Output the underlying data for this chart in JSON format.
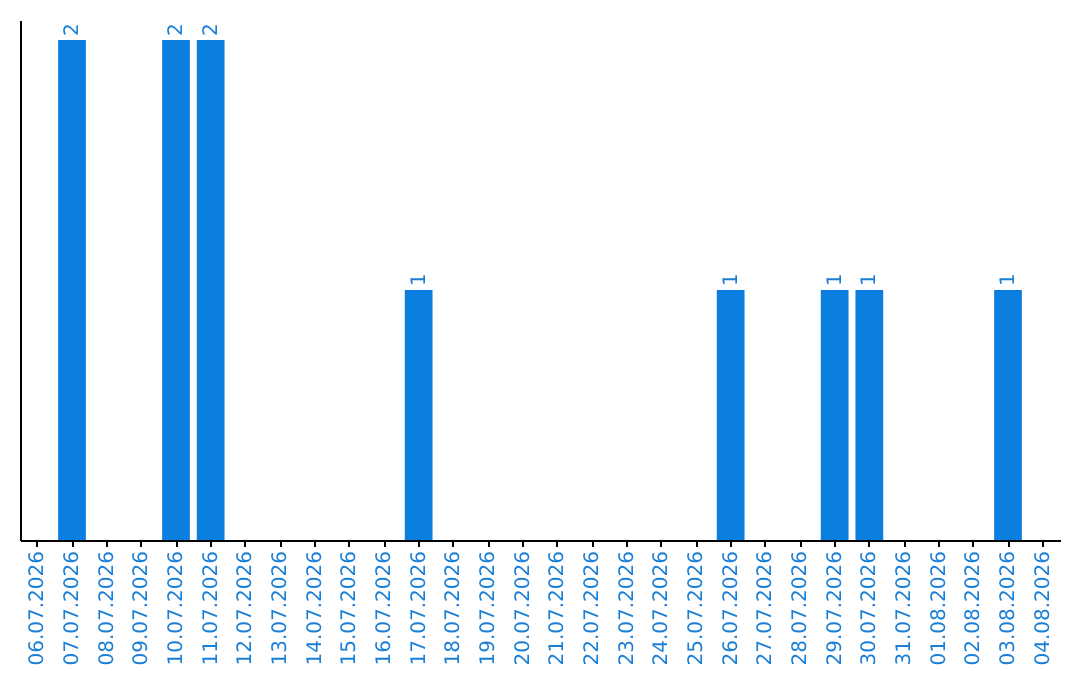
{
  "chart_data": {
    "type": "bar",
    "categories": [
      "06.07.2026",
      "07.07.2026",
      "08.07.2026",
      "09.07.2026",
      "10.07.2026",
      "11.07.2026",
      "12.07.2026",
      "13.07.2026",
      "14.07.2026",
      "15.07.2026",
      "16.07.2026",
      "17.07.2026",
      "18.07.2026",
      "19.07.2026",
      "20.07.2026",
      "21.07.2026",
      "22.07.2026",
      "23.07.2026",
      "24.07.2026",
      "25.07.2026",
      "26.07.2026",
      "27.07.2026",
      "28.07.2026",
      "29.07.2026",
      "30.07.2026",
      "31.07.2026",
      "01.08.2026",
      "02.08.2026",
      "03.08.2026",
      "04.08.2026"
    ],
    "values": [
      0,
      2,
      0,
      0,
      2,
      2,
      0,
      0,
      0,
      0,
      0,
      1,
      0,
      0,
      0,
      0,
      0,
      0,
      0,
      0,
      1,
      0,
      0,
      1,
      1,
      0,
      0,
      0,
      1,
      0
    ],
    "value_labels": [
      null,
      "2",
      null,
      null,
      "2",
      "2",
      null,
      null,
      null,
      null,
      null,
      "1",
      null,
      null,
      null,
      null,
      null,
      null,
      null,
      null,
      "1",
      null,
      null,
      "1",
      "1",
      null,
      null,
      null,
      "1",
      null
    ],
    "color": "#0a7fe0",
    "tick_labels": "x"
  }
}
